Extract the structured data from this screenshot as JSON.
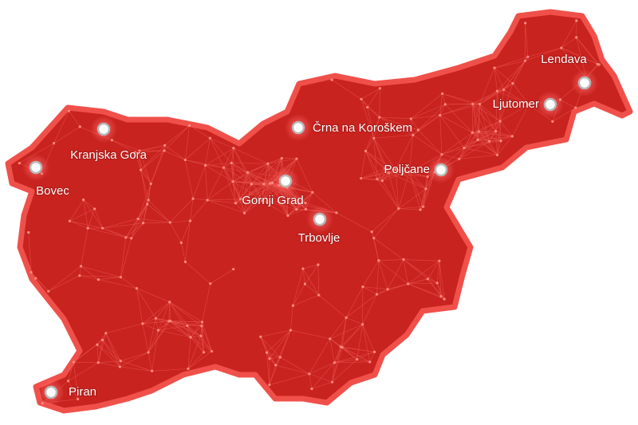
{
  "map": {
    "cities": [
      "Lendava",
      "Ljutomer",
      "Črna na Koroškem",
      "Kranjska Gora",
      "Poljčane",
      "Bovec",
      "Gornji Grad",
      "Trbovlje",
      "Piran"
    ]
  }
}
